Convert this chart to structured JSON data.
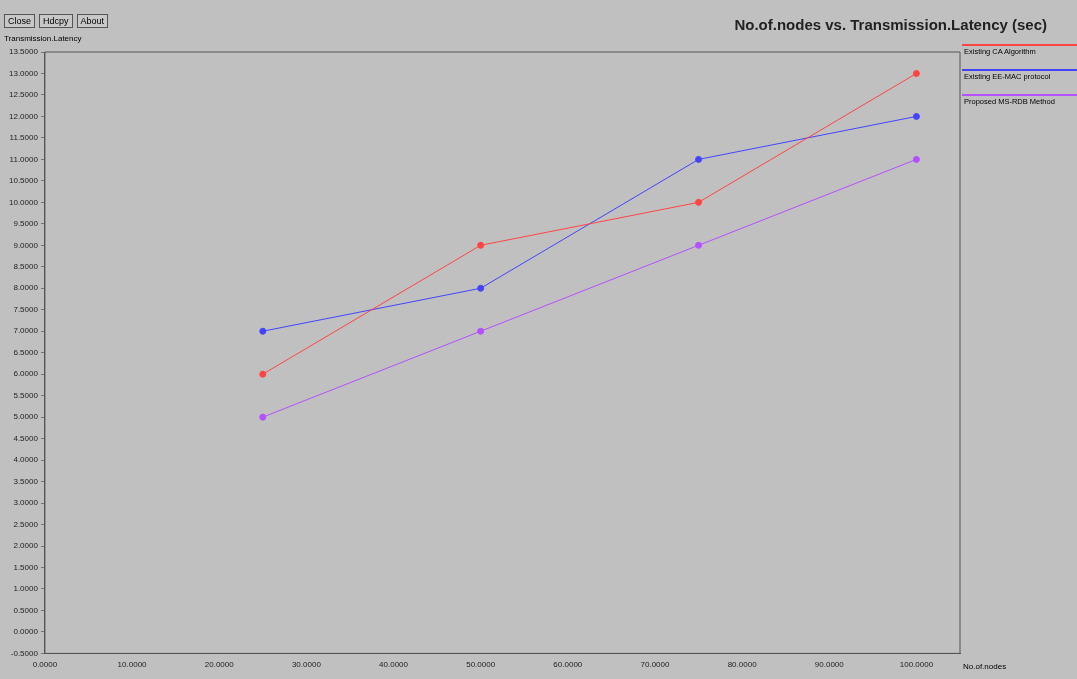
{
  "chart_data": {
    "type": "line",
    "title": "No.of.nodes vs. Transmission.Latency (sec)",
    "xlabel": "No.of.nodes",
    "ylabel": "Transmission.Latency",
    "annotations": [
      "Close",
      "Hdcpy",
      "About"
    ],
    "x": [
      25,
      50,
      75,
      100
    ],
    "series": [
      {
        "name": "Existing CA Algorithm",
        "color": "#ff4444",
        "values": [
          6,
          9,
          10,
          13
        ]
      },
      {
        "name": "Existing EE-MAC protocol",
        "color": "#4444ff",
        "values": [
          7,
          8,
          11,
          12
        ]
      },
      {
        "name": "Proposed MS-RDB Method",
        "color": "#b450ff",
        "values": [
          5,
          7,
          9,
          11
        ]
      }
    ],
    "xlim": [
      0,
      105
    ],
    "xticks": [
      {
        "value": 0,
        "label": "0.0000"
      },
      {
        "value": 10,
        "label": "10.0000"
      },
      {
        "value": 20,
        "label": "20.0000"
      },
      {
        "value": 30,
        "label": "30.0000"
      },
      {
        "value": 40,
        "label": "40.0000"
      },
      {
        "value": 50,
        "label": "50.0000"
      },
      {
        "value": 60,
        "label": "60.0000"
      },
      {
        "value": 70,
        "label": "70.0000"
      },
      {
        "value": 80,
        "label": "80.0000"
      },
      {
        "value": 90,
        "label": "90.0000"
      },
      {
        "value": 100,
        "label": "100.0000"
      }
    ],
    "ylim": [
      -0.5,
      13.5
    ],
    "yticks": [
      {
        "value": -0.5,
        "label": "-0.5000"
      },
      {
        "value": 0,
        "label": "0.0000"
      },
      {
        "value": 0.5,
        "label": "0.5000"
      },
      {
        "value": 1,
        "label": "1.0000"
      },
      {
        "value": 1.5,
        "label": "1.5000"
      },
      {
        "value": 2,
        "label": "2.0000"
      },
      {
        "value": 2.5,
        "label": "2.5000"
      },
      {
        "value": 3,
        "label": "3.0000"
      },
      {
        "value": 3.5,
        "label": "3.5000"
      },
      {
        "value": 4,
        "label": "4.0000"
      },
      {
        "value": 4.5,
        "label": "4.5000"
      },
      {
        "value": 5,
        "label": "5.0000"
      },
      {
        "value": 5.5,
        "label": "5.5000"
      },
      {
        "value": 6,
        "label": "6.0000"
      },
      {
        "value": 6.5,
        "label": "6.5000"
      },
      {
        "value": 7,
        "label": "7.0000"
      },
      {
        "value": 7.5,
        "label": "7.5000"
      },
      {
        "value": 8,
        "label": "8.0000"
      },
      {
        "value": 8.5,
        "label": "8.5000"
      },
      {
        "value": 9,
        "label": "9.0000"
      },
      {
        "value": 9.5,
        "label": "9.5000"
      },
      {
        "value": 10,
        "label": "10.0000"
      },
      {
        "value": 10.5,
        "label": "10.5000"
      },
      {
        "value": 11,
        "label": "11.0000"
      },
      {
        "value": 11.5,
        "label": "11.5000"
      },
      {
        "value": 12,
        "label": "12.0000"
      },
      {
        "value": 12.5,
        "label": "12.5000"
      },
      {
        "value": 13,
        "label": "13.0000"
      },
      {
        "value": 13.5,
        "label": "13.5000"
      }
    ],
    "grid": false,
    "legend": "top right",
    "marker": "circle",
    "line_style": "solid"
  }
}
